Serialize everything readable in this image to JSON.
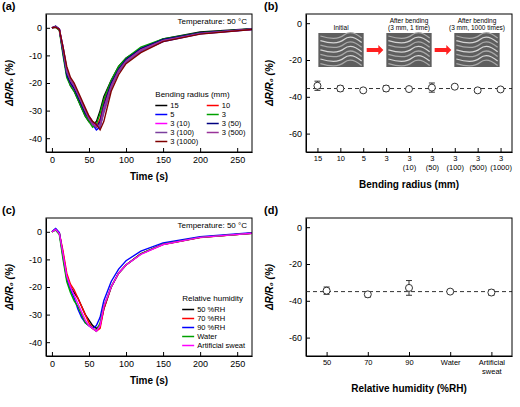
{
  "chart_data": [
    {
      "panel_label": "(a)",
      "type": "line",
      "x": [
        0,
        5,
        10,
        15,
        20,
        25,
        30,
        35,
        40,
        45,
        50,
        55,
        60,
        65,
        70,
        80,
        90,
        100,
        120,
        150,
        200,
        270
      ],
      "xlim": [
        -8,
        270
      ],
      "xticks": [
        0,
        50,
        100,
        150,
        200,
        250
      ],
      "ylim": [
        -45,
        5
      ],
      "yticks": [
        -40,
        -30,
        -20,
        -10,
        0
      ],
      "x_label": "Time (s)",
      "y_label": "ΔR/R₀ (%)",
      "annotations": [
        "Temperature: 50 °C"
      ],
      "legend": "lower right",
      "legend_title": "Bending radius (mm)",
      "series": [
        {
          "name": "15",
          "color": "#000000",
          "values": [
            0,
            0.5,
            -0.5,
            -9,
            -17,
            -21,
            -23,
            -26,
            -29,
            -32,
            -34,
            -35,
            -34,
            -30,
            -25,
            -19,
            -14,
            -11,
            -7.5,
            -4,
            -1.5,
            -0.3
          ]
        },
        {
          "name": "10",
          "color": "#ff0000",
          "values": [
            0,
            0.3,
            -0.8,
            -8,
            -16,
            -20,
            -22,
            -25,
            -28,
            -31,
            -33,
            -35,
            -36,
            -33,
            -27,
            -20,
            -15,
            -12,
            -8,
            -4.5,
            -2,
            -0.5
          ]
        },
        {
          "name": "5",
          "color": "#0000ff",
          "values": [
            0,
            0.4,
            -0.6,
            -7,
            -15,
            -19,
            -21,
            -24,
            -27,
            -30,
            -33,
            -35,
            -37,
            -36,
            -30,
            -21,
            -16,
            -12.5,
            -8.5,
            -5,
            -2.2,
            -0.6
          ]
        },
        {
          "name": "3",
          "color": "#00a000",
          "values": [
            0,
            0.2,
            -1,
            -10,
            -18,
            -21,
            -23,
            -26,
            -29,
            -32,
            -34,
            -36,
            -35,
            -31,
            -26,
            -19,
            -14,
            -11,
            -7,
            -4,
            -1.8,
            -0.4
          ]
        },
        {
          "name": "3 (10)",
          "color": "#ff00ff",
          "values": [
            0,
            0.5,
            -0.4,
            -8,
            -16,
            -20,
            -22,
            -24,
            -27,
            -30,
            -32,
            -34,
            -36,
            -35,
            -29,
            -21,
            -15.5,
            -12,
            -8,
            -4.5,
            -2,
            -0.5
          ]
        },
        {
          "name": "3 (50)",
          "color": "#000080",
          "values": [
            0,
            0.6,
            -0.5,
            -9,
            -17,
            -20,
            -22,
            -25,
            -28,
            -31,
            -33,
            -35,
            -36,
            -34,
            -28,
            -20,
            -15,
            -11.5,
            -7.5,
            -4.2,
            -1.9,
            -0.4
          ]
        },
        {
          "name": "3 (100)",
          "color": "#7b3f9e",
          "values": [
            0,
            0.4,
            -0.7,
            -8,
            -16,
            -19,
            -21,
            -24,
            -27,
            -30,
            -32,
            -34,
            -35,
            -36,
            -31,
            -22,
            -16,
            -12.5,
            -8.5,
            -4.8,
            -2.1,
            -0.5
          ]
        },
        {
          "name": "3 (500)",
          "color": "#993399",
          "values": [
            0,
            0.3,
            -0.5,
            -7,
            -15,
            -19,
            -21,
            -24,
            -27,
            -30,
            -33,
            -35,
            -36,
            -35,
            -29,
            -21,
            -15.5,
            -12,
            -8,
            -4.6,
            -2,
            -0.5
          ]
        },
        {
          "name": "3 (1000)",
          "color": "#800000",
          "values": [
            0,
            0.2,
            -0.6,
            -7,
            -14,
            -18,
            -20,
            -23,
            -26,
            -29,
            -32,
            -34,
            -35,
            -37,
            -34,
            -23,
            -17,
            -13,
            -9,
            -5,
            -2.3,
            -0.6
          ]
        }
      ]
    },
    {
      "panel_label": "(b)",
      "type": "scatter",
      "categories": [
        "15",
        "10",
        "5",
        "3",
        "3 (10)",
        "3 (50)",
        "3 (100)",
        "3 (500)",
        "3 (1000)"
      ],
      "values": [
        -34,
        -35.5,
        -36.5,
        -35.5,
        -35.8,
        -35,
        -34.5,
        -36.5,
        -36
      ],
      "errors": [
        2.5,
        1.5,
        1,
        1.5,
        1,
        2.5,
        1,
        1,
        1
      ],
      "mean_line": -35.5,
      "line_style": "dashed",
      "marker": "open-circle",
      "color": "#333333",
      "ylim": [
        -70,
        5
      ],
      "yticks": [
        -60,
        -40,
        -20,
        0
      ],
      "x_label": "Bending radius (mm)",
      "y_label": "ΔR/R₀ (%)",
      "image_labels": [
        "Initial",
        "After bending (3 mm, 1 time)",
        "After bending (3 mm, 1000 times)"
      ]
    },
    {
      "panel_label": "(c)",
      "type": "line",
      "x": [
        0,
        5,
        10,
        15,
        20,
        25,
        30,
        35,
        40,
        45,
        50,
        55,
        60,
        65,
        70,
        80,
        90,
        100,
        120,
        150,
        200,
        270
      ],
      "xlim": [
        -8,
        270
      ],
      "xticks": [
        0,
        50,
        100,
        150,
        200,
        250
      ],
      "ylim": [
        -45,
        5
      ],
      "yticks": [
        -40,
        -30,
        -20,
        -10,
        0
      ],
      "x_label": "Time (s)",
      "y_label": "ΔR/R₀ (%)",
      "annotations": [
        "Temperature: 50 °C"
      ],
      "legend": "lower right",
      "legend_title": "Relative humidity",
      "series": [
        {
          "name": "50 %RH",
          "color": "#000000",
          "values": [
            0,
            1,
            -0.5,
            -8,
            -16,
            -20,
            -22,
            -24,
            -27,
            -30,
            -32,
            -34,
            -35,
            -34,
            -28,
            -20,
            -15,
            -12,
            -8,
            -4.5,
            -2,
            -0.5
          ]
        },
        {
          "name": "70 %RH",
          "color": "#ff0000",
          "values": [
            0,
            0.8,
            -0.5,
            -7,
            -15,
            -19,
            -21,
            -24,
            -27,
            -30,
            -33,
            -35,
            -36,
            -35,
            -28,
            -20,
            -15,
            -12,
            -8,
            -4.6,
            -2.1,
            -0.5
          ]
        },
        {
          "name": "90 %RH",
          "color": "#0000ff",
          "values": [
            0,
            1.2,
            -0.3,
            -9,
            -17,
            -21,
            -24,
            -28,
            -31,
            -33,
            -34,
            -35,
            -34,
            -31,
            -25,
            -18,
            -13.5,
            -10.5,
            -7,
            -4,
            -1.8,
            -0.3
          ]
        },
        {
          "name": "Water",
          "color": "#00a000",
          "values": [
            0,
            0.6,
            -1,
            -10,
            -18,
            -22,
            -25,
            -27,
            -30,
            -33,
            -34,
            -35,
            -36,
            -33,
            -27,
            -20,
            -15,
            -12,
            -8,
            -4.5,
            -2,
            -0.5
          ]
        },
        {
          "name": "Artificial sweat",
          "color": "#ff00ff",
          "values": [
            0,
            0.9,
            -0.6,
            -8,
            -16,
            -20,
            -23,
            -26,
            -29,
            -32,
            -34,
            -35,
            -36,
            -34,
            -27,
            -20,
            -15,
            -12,
            -8.2,
            -4.6,
            -2,
            -0.5
          ]
        }
      ]
    },
    {
      "panel_label": "(d)",
      "type": "scatter",
      "categories": [
        "50",
        "70",
        "90",
        "Water",
        "Artificial sweat"
      ],
      "values": [
        -34.5,
        -36.5,
        -33,
        -35,
        -35.5
      ],
      "errors": [
        2,
        1.5,
        4,
        1,
        1.5
      ],
      "mean_line": -35,
      "line_style": "dashed",
      "marker": "open-circle",
      "color": "#333333",
      "ylim": [
        -70,
        5
      ],
      "yticks": [
        -60,
        -40,
        -20,
        0
      ],
      "x_label": "Relative humidity (%RH)",
      "y_label": "ΔR/R₀ (%)"
    }
  ]
}
